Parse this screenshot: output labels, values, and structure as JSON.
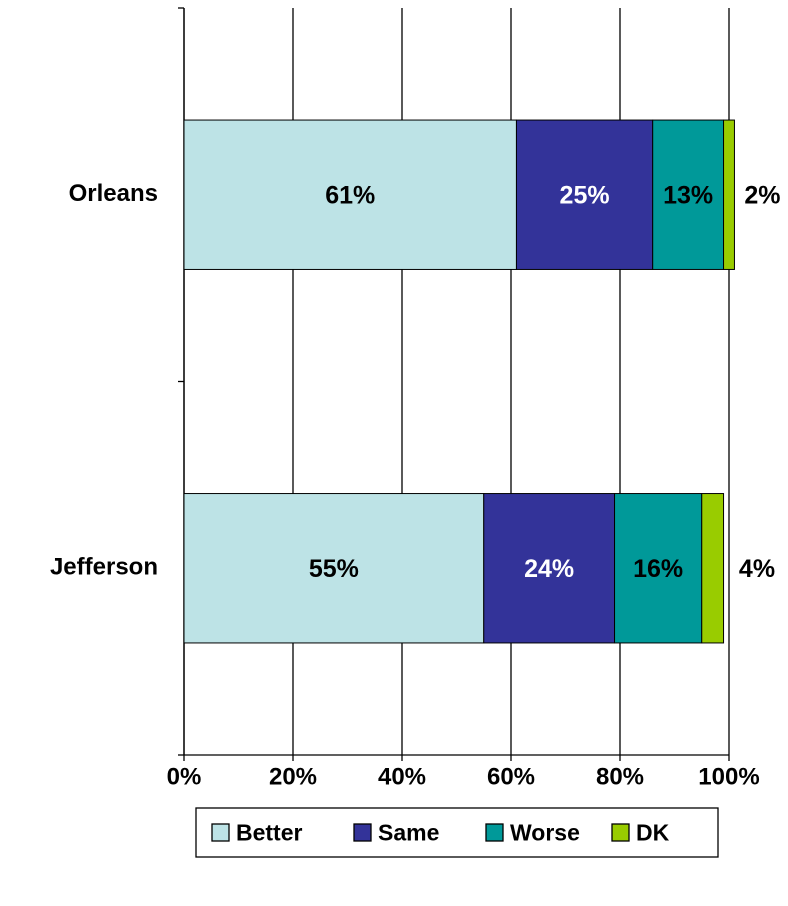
{
  "chart_data": {
    "type": "stacked_barh",
    "categories": [
      "Orleans",
      "Jefferson"
    ],
    "series": [
      {
        "name": "Better",
        "color": "#bde3e6",
        "label_color": "#000000",
        "values": [
          61,
          55
        ],
        "value_labels": [
          "61%",
          "55%"
        ]
      },
      {
        "name": "Same",
        "color": "#333399",
        "label_color": "#ffffff",
        "values": [
          25,
          24
        ],
        "value_labels": [
          "25%",
          "24%"
        ]
      },
      {
        "name": "Worse",
        "color": "#009999",
        "label_color": "#000000",
        "values": [
          13,
          16
        ],
        "value_labels": [
          "13%",
          "16%"
        ]
      },
      {
        "name": "DK",
        "color": "#99cc00",
        "label_color": "#000000",
        "values": [
          2,
          4
        ],
        "value_labels": [
          "2%",
          "4%"
        ]
      }
    ],
    "xlim": [
      0,
      100
    ],
    "xticks": [
      {
        "value": 0,
        "label": "0%"
      },
      {
        "value": 20,
        "label": "20%"
      },
      {
        "value": 40,
        "label": "40%"
      },
      {
        "value": 60,
        "label": "60%"
      },
      {
        "value": 80,
        "label": "80%"
      },
      {
        "value": 100,
        "label": "100%"
      }
    ],
    "grid": true,
    "legend": "bottom"
  }
}
